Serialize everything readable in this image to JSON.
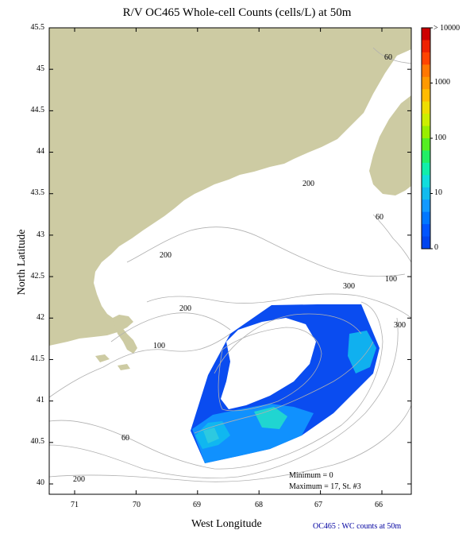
{
  "title": "R/V OC465 Whole-cell Counts (cells/L) at 50m",
  "x_axis_label": "West Longitude",
  "y_axis_label": "North Latitude",
  "footer_caption": "OC465 : WC counts at 50m",
  "x_ticks": [
    "71",
    "70",
    "69",
    "68",
    "67",
    "66"
  ],
  "y_ticks": [
    "45.5",
    "45",
    "44.5",
    "44",
    "43.5",
    "43",
    "42.5",
    "42",
    "41.5",
    "41",
    "40.5",
    "40"
  ],
  "colorbar": {
    "labels": [
      "> 10000",
      "1000",
      "100",
      "10",
      "0"
    ],
    "colors": [
      "#cc0000",
      "#ee2200",
      "#ff4400",
      "#ff7700",
      "#ff9900",
      "#ffbb00",
      "#eedd00",
      "#ccee00",
      "#99ee00",
      "#55ee22",
      "#22ee66",
      "#11eeaa",
      "#11dddd",
      "#11bbee",
      "#1199ff",
      "#0077ff",
      "#0055ff",
      "#0044ee"
    ]
  },
  "contour_labels": [
    "60",
    "200",
    "200",
    "300",
    "60",
    "300",
    "100",
    "200",
    "100",
    "60",
    "200"
  ],
  "stats": {
    "minimum": "Minimum = 0",
    "maximum": "Maximum = 17, St. #3"
  },
  "colors": {
    "land": "#cdcba3",
    "survey_base": "#0a4cf0",
    "contour": "#b0b0b0",
    "footer": "#0000a0"
  }
}
